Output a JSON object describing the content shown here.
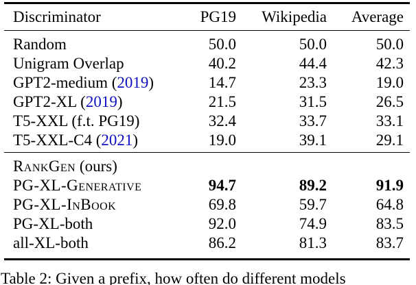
{
  "colors": {
    "citation_blue": "#0f0fc0",
    "text": "#000000",
    "background": "#ffffff"
  },
  "table": {
    "columns": [
      "Discriminator",
      "PG19",
      "Wikipedia",
      "Average"
    ],
    "baseline_rows": [
      {
        "label_parts": [
          {
            "text": "Random",
            "style": "normal"
          }
        ],
        "values": [
          "50.0",
          "50.0",
          "50.0"
        ],
        "bold": false
      },
      {
        "label_parts": [
          {
            "text": "Unigram Overlap",
            "style": "normal"
          }
        ],
        "values": [
          "40.2",
          "44.4",
          "42.3"
        ],
        "bold": false
      },
      {
        "label_parts": [
          {
            "text": "GPT2-medium (",
            "style": "normal"
          },
          {
            "text": "2019",
            "style": "cite"
          },
          {
            "text": ")",
            "style": "normal"
          }
        ],
        "values": [
          "14.7",
          "23.3",
          "19.0"
        ],
        "bold": false
      },
      {
        "label_parts": [
          {
            "text": "GPT2-XL (",
            "style": "normal"
          },
          {
            "text": "2019",
            "style": "cite"
          },
          {
            "text": ")",
            "style": "normal"
          }
        ],
        "values": [
          "21.5",
          "31.5",
          "26.5"
        ],
        "bold": false
      },
      {
        "label_parts": [
          {
            "text": "T5-XXL (f.t. PG19)",
            "style": "normal"
          }
        ],
        "values": [
          "32.4",
          "33.7",
          "33.1"
        ],
        "bold": false
      },
      {
        "label_parts": [
          {
            "text": "T5-XXL-C4 (",
            "style": "normal"
          },
          {
            "text": "2021",
            "style": "cite"
          },
          {
            "text": ")",
            "style": "normal"
          }
        ],
        "values": [
          "19.0",
          "39.1",
          "29.1"
        ],
        "bold": false
      }
    ],
    "rankgen_rows": [
      {
        "label_parts": [
          {
            "text": "RankGen",
            "style": "smallcaps"
          },
          {
            "text": " (ours)",
            "style": "normal"
          }
        ],
        "values": [
          "",
          "",
          ""
        ],
        "bold": false
      },
      {
        "label_parts": [
          {
            "text": "PG-XL-Generative",
            "style": "smallcaps"
          }
        ],
        "values": [
          "94.7",
          "89.2",
          "91.9"
        ],
        "bold": true
      },
      {
        "label_parts": [
          {
            "text": "PG-XL-InBook",
            "style": "smallcaps"
          }
        ],
        "values": [
          "69.8",
          "59.7",
          "64.8"
        ],
        "bold": false
      },
      {
        "label_parts": [
          {
            "text": "PG-XL-both",
            "style": "normal"
          }
        ],
        "values": [
          "92.0",
          "74.9",
          "83.5"
        ],
        "bold": false
      },
      {
        "label_parts": [
          {
            "text": "all-XL-both",
            "style": "normal"
          }
        ],
        "values": [
          "86.2",
          "81.3",
          "83.7"
        ],
        "bold": false
      }
    ]
  },
  "caption": "Table 2: Given a prefix, how often do different models"
}
